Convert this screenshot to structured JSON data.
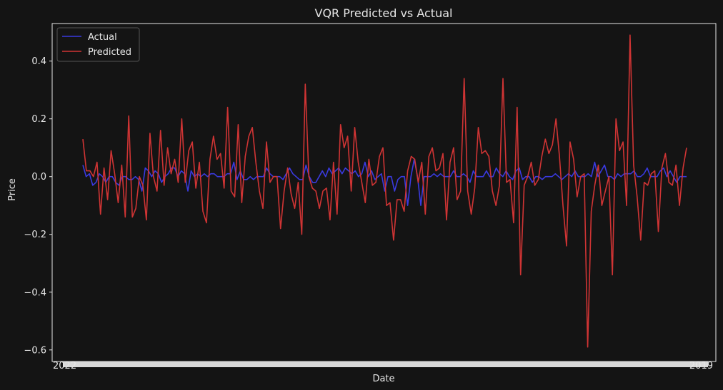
{
  "chart_data": {
    "type": "line",
    "title": "VQR Predicted vs Actual",
    "xlabel": "Date",
    "ylabel": "Price",
    "ylim": [
      -0.64,
      0.53
    ],
    "yticks": [
      -0.6,
      -0.4,
      -0.2,
      0.0,
      0.2,
      0.4
    ],
    "ytick_labels": [
      "−0.6",
      "−0.4",
      "−0.2",
      "0.0",
      "0.2",
      "0.4"
    ],
    "x_tick_count": 180,
    "x_end_label_left": "2022",
    "x_end_label_right": "2019",
    "grid": false,
    "legend_position": "top-left",
    "series": [
      {
        "name": "Actual",
        "color": "#3a3ae0",
        "values": [
          0.04,
          0.0,
          0.01,
          -0.03,
          -0.02,
          0.01,
          0.0,
          -0.02,
          0.0,
          0.0,
          -0.02,
          -0.03,
          0.0,
          0.0,
          -0.01,
          -0.01,
          0.0,
          -0.01,
          -0.05,
          0.03,
          0.02,
          0.0,
          0.02,
          0.01,
          -0.02,
          0.0,
          0.01,
          0.03,
          0.03,
          0.0,
          0.02,
          0.01,
          -0.05,
          0.02,
          0.0,
          0.01,
          0.0,
          0.01,
          0.0,
          0.01,
          0.01,
          0.0,
          0.0,
          0.0,
          0.01,
          0.01,
          0.05,
          -0.01,
          0.02,
          -0.01,
          -0.01,
          0.0,
          -0.01,
          0.0,
          0.0,
          0.0,
          0.03,
          0.01,
          0.0,
          0.0,
          0.0,
          -0.01,
          0.01,
          0.03,
          0.01,
          0.0,
          -0.01,
          -0.01,
          0.04,
          0.0,
          -0.02,
          -0.02,
          0.0,
          0.02,
          0.0,
          0.03,
          0.01,
          0.02,
          0.03,
          0.01,
          0.03,
          0.02,
          0.01,
          0.02,
          0.0,
          0.01,
          0.05,
          0.0,
          0.02,
          -0.01,
          0.0,
          0.01,
          -0.05,
          0.0,
          0.0,
          -0.05,
          -0.01,
          0.0,
          0.0,
          -0.1,
          0.0,
          0.06,
          0.0,
          -0.1,
          0.0,
          0.0,
          0.0,
          0.01,
          0.0,
          0.01,
          0.0,
          0.0,
          0.0,
          0.02,
          0.0,
          0.0,
          0.01,
          0.0,
          -0.02,
          0.02,
          0.0,
          0.0,
          0.0,
          0.02,
          0.0,
          0.0,
          0.03,
          0.01,
          0.0,
          0.02,
          0.0,
          -0.01,
          0.02,
          0.03,
          -0.01,
          0.0,
          0.0,
          -0.02,
          0.0,
          0.0,
          -0.01,
          0.0,
          0.0,
          0.0,
          0.01,
          0.0,
          -0.01,
          0.0,
          0.01,
          0.0,
          0.02,
          0.0,
          0.0,
          0.0,
          0.01,
          0.0,
          0.05,
          0.0,
          0.02,
          0.04,
          0.0,
          0.0,
          -0.01,
          0.01,
          0.0,
          0.01,
          0.01,
          0.01,
          0.02,
          0.0,
          0.0,
          0.01,
          0.03,
          0.0,
          0.0,
          0.0,
          0.02,
          0.03,
          0.0,
          0.02,
          0.0,
          -0.02,
          0.0,
          0.0,
          0.0
        ],
        "x_label_note": ""
      },
      {
        "name": "Predicted",
        "color": "#d03434",
        "values": [
          0.13,
          0.02,
          0.02,
          0.0,
          0.05,
          -0.13,
          0.03,
          -0.08,
          0.09,
          0.01,
          -0.09,
          0.04,
          -0.14,
          0.21,
          -0.14,
          -0.11,
          0.0,
          -0.03,
          -0.15,
          0.15,
          0.0,
          -0.05,
          0.16,
          -0.03,
          0.1,
          0.01,
          0.06,
          -0.02,
          0.2,
          -0.02,
          0.09,
          0.12,
          -0.04,
          0.05,
          -0.12,
          -0.16,
          0.06,
          0.14,
          0.06,
          0.08,
          -0.04,
          0.24,
          -0.05,
          -0.07,
          0.18,
          -0.09,
          0.07,
          0.14,
          0.17,
          0.05,
          -0.05,
          -0.11,
          0.12,
          -0.02,
          0.0,
          0.0,
          -0.18,
          -0.05,
          0.03,
          -0.06,
          -0.11,
          -0.02,
          -0.2,
          0.32,
          0.0,
          -0.04,
          -0.05,
          -0.11,
          -0.05,
          -0.04,
          -0.15,
          0.05,
          -0.13,
          0.18,
          0.1,
          0.14,
          -0.05,
          0.17,
          0.05,
          -0.02,
          -0.09,
          0.06,
          -0.03,
          -0.02,
          0.07,
          0.1,
          -0.1,
          -0.09,
          -0.22,
          -0.08,
          -0.08,
          -0.12,
          0.02,
          0.07,
          0.06,
          -0.02,
          0.05,
          -0.13,
          0.07,
          0.1,
          0.02,
          0.03,
          0.08,
          -0.15,
          0.05,
          0.1,
          -0.08,
          -0.05,
          0.34,
          -0.05,
          -0.13,
          -0.04,
          0.17,
          0.08,
          0.09,
          0.07,
          -0.05,
          -0.1,
          -0.03,
          0.34,
          -0.02,
          -0.01,
          -0.16,
          0.24,
          -0.34,
          -0.03,
          0.0,
          0.05,
          -0.03,
          -0.01,
          0.07,
          0.13,
          0.08,
          0.11,
          0.2,
          0.07,
          -0.1,
          -0.24,
          0.12,
          0.06,
          -0.07,
          0.0,
          0.01,
          -0.59,
          -0.12,
          -0.03,
          0.04,
          -0.1,
          -0.05,
          0.0,
          -0.34,
          0.2,
          0.09,
          0.12,
          -0.1,
          0.49,
          0.04,
          -0.07,
          -0.22,
          -0.02,
          -0.03,
          0.01,
          0.02,
          -0.19,
          0.03,
          0.08,
          -0.02,
          -0.03,
          0.04,
          -0.1,
          0.03,
          0.1
        ],
        "x_label_note": ""
      }
    ]
  }
}
